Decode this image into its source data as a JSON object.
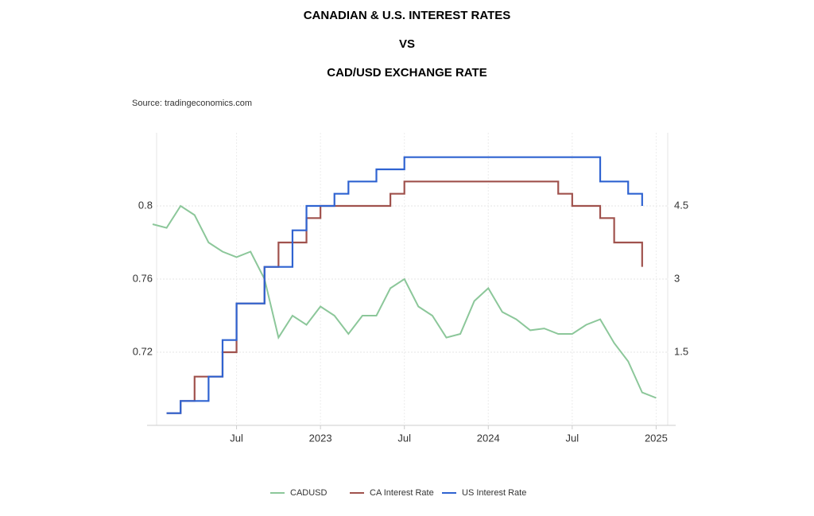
{
  "chart_data": {
    "type": "line",
    "title_lines": [
      "CANADIAN & U.S. INTEREST RATES",
      "VS",
      "CAD/USD EXCHANGE RATE"
    ],
    "source": "Source: tradingeconomics.com",
    "xlim": [
      "2022-01",
      "2025-02"
    ],
    "xticks": [
      {
        "value": "2022-07",
        "label": "Jul"
      },
      {
        "value": "2023-01",
        "label": "2023"
      },
      {
        "value": "2023-07",
        "label": "Jul"
      },
      {
        "value": "2024-01",
        "label": "2024"
      },
      {
        "value": "2024-07",
        "label": "Jul"
      },
      {
        "value": "2025-01",
        "label": "2025"
      }
    ],
    "ylim": [
      0.68,
      0.84
    ],
    "yticks": [
      0.72,
      0.76,
      0.8
    ],
    "y2lim": [
      0,
      6
    ],
    "y2ticks": [
      1.5,
      3,
      4.5
    ],
    "grid": true,
    "legend": "bottom",
    "series": [
      {
        "name": "CADUSD",
        "color": "#8cc79a",
        "step": false,
        "x": [
          "2022-01",
          "2022-02",
          "2022-03",
          "2022-04",
          "2022-05",
          "2022-06",
          "2022-07",
          "2022-08",
          "2022-09",
          "2022-10",
          "2022-11",
          "2022-12",
          "2023-01",
          "2023-02",
          "2023-03",
          "2023-04",
          "2023-05",
          "2023-06",
          "2023-07",
          "2023-08",
          "2023-09",
          "2023-10",
          "2023-11",
          "2023-12",
          "2024-01",
          "2024-02",
          "2024-03",
          "2024-04",
          "2024-05",
          "2024-06",
          "2024-07",
          "2024-08",
          "2024-09",
          "2024-10",
          "2024-11",
          "2024-12",
          "2025-01"
        ],
        "values": [
          0.79,
          0.788,
          0.8,
          0.795,
          0.78,
          0.775,
          0.772,
          0.775,
          0.76,
          0.728,
          0.74,
          0.735,
          0.745,
          0.74,
          0.73,
          0.74,
          0.74,
          0.755,
          0.76,
          0.745,
          0.74,
          0.728,
          0.73,
          0.748,
          0.755,
          0.742,
          0.738,
          0.732,
          0.733,
          0.73,
          0.73,
          0.735,
          0.738,
          0.725,
          0.715,
          0.698,
          0.695
        ]
      },
      {
        "name": "CA Interest Rate",
        "color": "#a0524d",
        "step": true,
        "axis": "y2",
        "x": [
          "2022-02",
          "2022-03",
          "2022-04",
          "2022-06",
          "2022-07",
          "2022-09",
          "2022-10",
          "2022-12",
          "2023-01",
          "2023-06",
          "2023-07",
          "2024-06",
          "2024-07",
          "2024-09",
          "2024-10",
          "2024-12"
        ],
        "values": [
          0.25,
          0.5,
          1,
          1.5,
          2.5,
          3.25,
          3.75,
          4.25,
          4.5,
          4.75,
          5,
          4.75,
          4.5,
          4.25,
          3.75,
          3.25
        ]
      },
      {
        "name": "US Interest Rate",
        "color": "#2f63d1",
        "step": true,
        "axis": "y2",
        "x": [
          "2022-02",
          "2022-03",
          "2022-05",
          "2022-06",
          "2022-07",
          "2022-09",
          "2022-11",
          "2022-12",
          "2023-02",
          "2023-03",
          "2023-05",
          "2023-07",
          "2024-09",
          "2024-11",
          "2024-12"
        ],
        "values": [
          0.25,
          0.5,
          1,
          1.75,
          2.5,
          3.25,
          4,
          4.5,
          4.75,
          5,
          5.25,
          5.5,
          5,
          4.75,
          4.5
        ]
      }
    ]
  }
}
